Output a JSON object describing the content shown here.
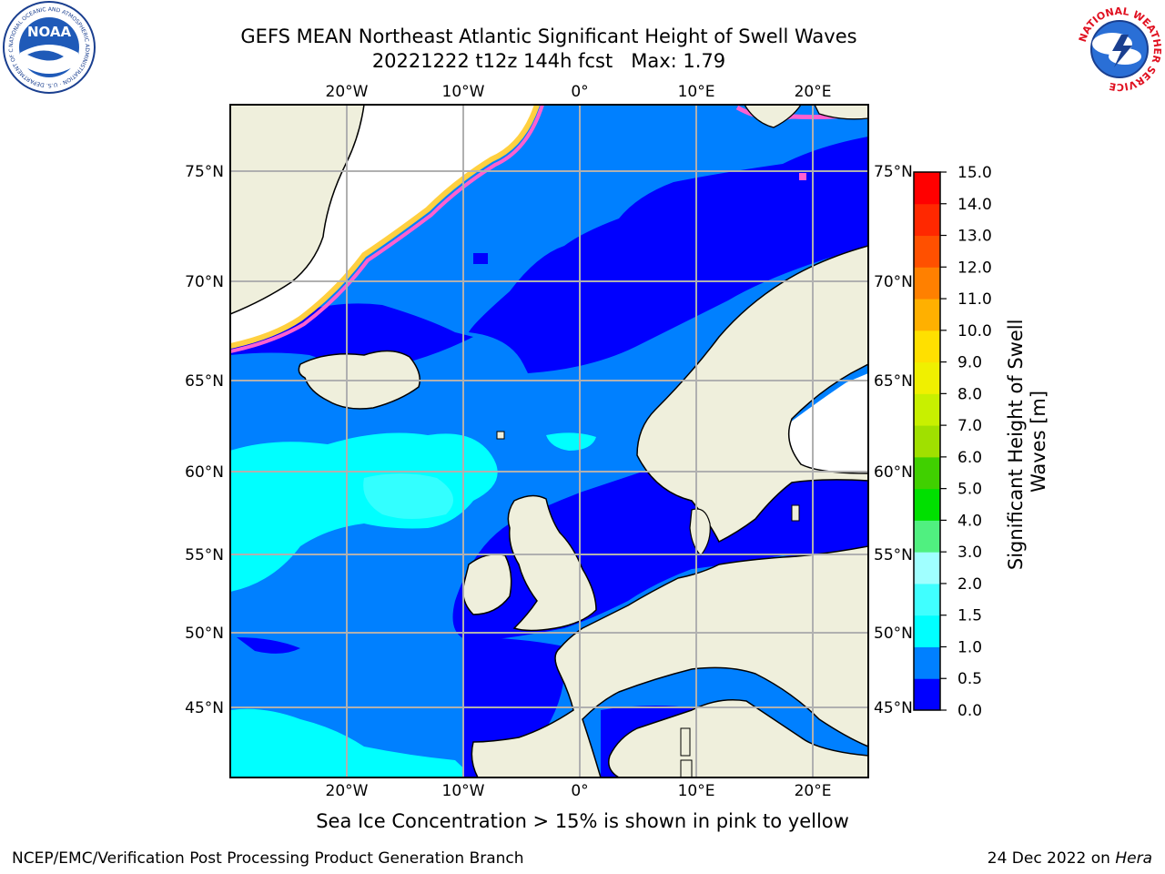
{
  "title": {
    "line1": "GEFS MEAN Northeast Atlantic Significant Height of Swell Waves",
    "line2": "20221222 t12z 144h fcst   Max: 1.79"
  },
  "caption": "Sea Ice Concentration > 15% is shown in pink to yellow",
  "footer": {
    "left": "NCEP/EMC/Verification Post Processing Product Generation Branch",
    "right_date": "24 Dec 2022 on ",
    "right_host": "Hera"
  },
  "logos": {
    "left": {
      "name": "NOAA",
      "text": "NOAA",
      "ring": "NATIONAL OCEANIC AND ATMOSPHERIC ADMINISTRATION · U.S. DEPARTMENT OF COMMERCE"
    },
    "right": {
      "name": "National Weather Service",
      "ring": "NATIONAL WEATHER SERVICE"
    }
  },
  "map": {
    "lon_labels": [
      "20°W",
      "10°W",
      "0°",
      "10°E",
      "20°E"
    ],
    "lat_labels": [
      "75°N",
      "70°N",
      "65°N",
      "60°N",
      "55°N",
      "50°N",
      "45°N"
    ],
    "colors": {
      "land": "#efefdc",
      "ice_free_white": "#ffffff",
      "grid": "#b0b0b0",
      "coast": "#000000"
    }
  },
  "colorbar": {
    "label_line1": "Significant Height of Swell",
    "label_line2": "Waves [m]",
    "ticks": [
      "0.0",
      "0.5",
      "1.0",
      "1.5",
      "2.0",
      "3.0",
      "4.0",
      "5.0",
      "6.0",
      "7.0",
      "8.0",
      "9.0",
      "10.0",
      "11.0",
      "12.0",
      "13.0",
      "14.0",
      "15.0"
    ],
    "colors": [
      "#0000ff",
      "#0080ff",
      "#00ffff",
      "#40ffff",
      "#a0ffff",
      "#50f080",
      "#00e000",
      "#40d000",
      "#a0e000",
      "#c8f000",
      "#f0f000",
      "#ffe000",
      "#ffb000",
      "#ff8000",
      "#ff5000",
      "#ff2800",
      "#ff0000"
    ]
  }
}
